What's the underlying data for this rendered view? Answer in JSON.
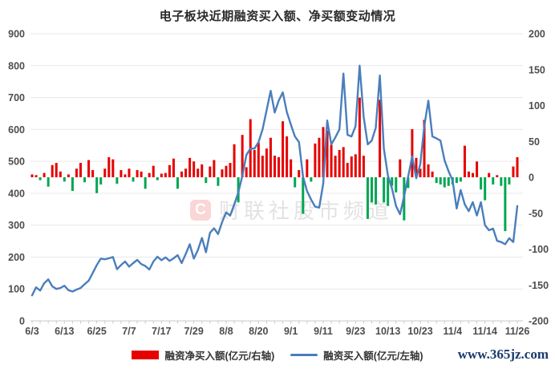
{
  "title": "电子板块近期融资买入额、净买额变动情况",
  "watermark": {
    "logo_letter": "C",
    "text": "财联社股市频道"
  },
  "footer": {
    "site_link": "www.365jz.com"
  },
  "legend": {
    "items": [
      {
        "label": "融资净买入额(亿元/右轴)",
        "swatch": "bar",
        "color": "#e60000"
      },
      {
        "label": "融资买入额(亿元/左轴)",
        "swatch": "line",
        "color": "#4a7ebc"
      }
    ]
  },
  "colors": {
    "bar_positive": "#e60000",
    "bar_negative": "#00a651",
    "line": "#4a7ebc",
    "grid": "#e9e9e9",
    "axis": "#c9c9c9",
    "axis_text": "#4d4d4d",
    "link": "#1b3a6d"
  },
  "chart_data": {
    "type": "bar+line",
    "title": "电子板块近期融资买入额、净买额变动情况",
    "grid": "horizontal",
    "legend_position": "bottom",
    "x_labels": [
      "6/3",
      "6/13",
      "6/25",
      "7/7",
      "7/17",
      "7/29",
      "8/8",
      "8/20",
      "9/1",
      "9/11",
      "9/23",
      "10/13",
      "10/23",
      "11/4",
      "11/14",
      "11/26"
    ],
    "x_label_every": 8,
    "left_axis": {
      "min": 0,
      "max": 900,
      "step": 100,
      "ticks": [
        0,
        100,
        200,
        300,
        400,
        500,
        600,
        700,
        800,
        900
      ]
    },
    "right_axis": {
      "min": -200,
      "max": 200,
      "step": 50,
      "ticks": [
        -200,
        -150,
        -100,
        -50,
        0,
        50,
        100,
        150,
        200
      ]
    },
    "series": [
      {
        "name": "融资净买入额(亿元/右轴)",
        "type": "bar",
        "axis": "right",
        "color_positive": "#e60000",
        "color_negative": "#00a651",
        "values": [
          4,
          3,
          -4,
          6,
          -13,
          17,
          20,
          8,
          -6,
          4,
          -19,
          12,
          20,
          -7,
          24,
          10,
          -22,
          -10,
          12,
          28,
          25,
          -9,
          10,
          4,
          12,
          -6,
          10,
          8,
          -16,
          6,
          16,
          -4,
          5,
          6,
          17,
          26,
          -16,
          8,
          12,
          27,
          22,
          12,
          18,
          -8,
          15,
          24,
          -12,
          11,
          16,
          20,
          46,
          -35,
          59,
          14,
          81,
          38,
          48,
          30,
          40,
          55,
          30,
          28,
          78,
          57,
          25,
          -14,
          10,
          -51,
          25,
          -6,
          47,
          55,
          70,
          65,
          45,
          30,
          38,
          42,
          20,
          29,
          32,
          111,
          30,
          -58,
          -35,
          -38,
          108,
          -35,
          -40,
          -12,
          -21,
          25,
          -60,
          -15,
          67,
          27,
          12,
          80,
          18,
          8,
          -8,
          -10,
          -14,
          -12,
          -10,
          -8,
          -6,
          44,
          8,
          6,
          22,
          -17,
          -32,
          6,
          -10,
          3,
          -12,
          -75,
          -10,
          15,
          28
        ]
      },
      {
        "name": "融资买入额(亿元/左轴)",
        "type": "line",
        "axis": "left",
        "color": "#4a7ebc",
        "values": [
          80,
          105,
          95,
          118,
          130,
          108,
          100,
          103,
          110,
          96,
          92,
          98,
          103,
          115,
          126,
          150,
          175,
          195,
          193,
          196,
          200,
          162,
          175,
          186,
          170,
          181,
          191,
          178,
          172,
          161,
          186,
          201,
          190,
          199,
          188,
          196,
          206,
          181,
          210,
          240,
          195,
          222,
          260,
          215,
          276,
          290,
          272,
          310,
          340,
          330,
          365,
          402,
          455,
          520,
          540,
          540,
          560,
          600,
          660,
          721,
          653,
          690,
          716,
          655,
          615,
          578,
          560,
          452,
          407,
          380,
          358,
          355,
          430,
          628,
          553,
          575,
          600,
          775,
          583,
          578,
          610,
          800,
          640,
          553,
          565,
          605,
          769,
          540,
          455,
          415,
          360,
          334,
          390,
          452,
          515,
          447,
          490,
          610,
          690,
          578,
          572,
          565,
          503,
          469,
          440,
          352,
          410,
          365,
          344,
          372,
          330,
          372,
          300,
          284,
          289,
          251,
          247,
          240,
          259,
          247,
          360
        ]
      }
    ]
  }
}
